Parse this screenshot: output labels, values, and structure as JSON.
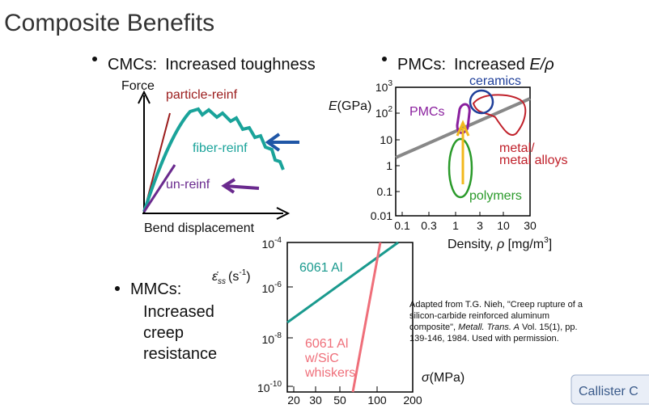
{
  "title": "Composite Benefits",
  "cmc": {
    "heading": "CMCs:",
    "subtitle": "Increased toughness",
    "y_label": "Force",
    "x_label": "Bend displacement",
    "curves": [
      "particle-reinf",
      "fiber-reinf",
      "un-reinf"
    ]
  },
  "pmc": {
    "heading": "PMCs:",
    "subtitle": "Increased ",
    "subtitle_math": "E/ρ",
    "y_label": {
      "symbol": "E",
      "unit": "(GPa)"
    },
    "x_label": {
      "text": "Density, ",
      "symbol": "ρ",
      "unit": " [mg/m",
      "unit_exp": "3",
      "close": "]"
    },
    "yticks": [
      {
        "base": "10",
        "exp": "3"
      },
      {
        "base": "10",
        "exp": "2"
      },
      "10",
      "1",
      "0.1",
      "0.01"
    ],
    "xticks": [
      "0.1",
      "0.3",
      "1",
      "3",
      "10",
      "30"
    ],
    "regions": {
      "ceramics": "ceramics",
      "pmcs": "PMCs",
      "metals": [
        "metal/",
        "metal alloys"
      ],
      "polymers": "polymers"
    }
  },
  "mmc": {
    "heading": "MMCs:",
    "lines": [
      "Increased",
      "creep",
      "resistance"
    ]
  },
  "creep": {
    "y_label": {
      "symbol": "ε̇",
      "sub": "ss",
      "unit": "(s",
      "unit_exp": "-1",
      "close": ")"
    },
    "x_label": {
      "symbol": "σ",
      "unit": "(MPa)"
    },
    "yticks": [
      {
        "base": "10",
        "exp": "-4"
      },
      {
        "base": "10",
        "exp": "-6"
      },
      {
        "base": "10",
        "exp": "-8"
      },
      {
        "base": "10",
        "exp": "-10"
      }
    ],
    "xticks": [
      "20",
      "30",
      "50",
      "100",
      "200"
    ],
    "series": [
      "6061 Al",
      [
        "6061 Al",
        "w/SiC",
        "whiskers"
      ]
    ]
  },
  "citation": [
    [
      {
        "t": "Adapted from T.G. Nieh, \"Creep rupture of a"
      }
    ],
    [
      {
        "t": "silicon-carbide reinforced aluminum"
      }
    ],
    [
      {
        "t": "composite\", "
      },
      {
        "i": "Metall. Trans. A"
      },
      {
        "t": " Vol. 15(1), pp."
      }
    ],
    [
      {
        "t": "139-146, 1984.  Used with permission."
      }
    ]
  ],
  "button": "Callister C"
}
